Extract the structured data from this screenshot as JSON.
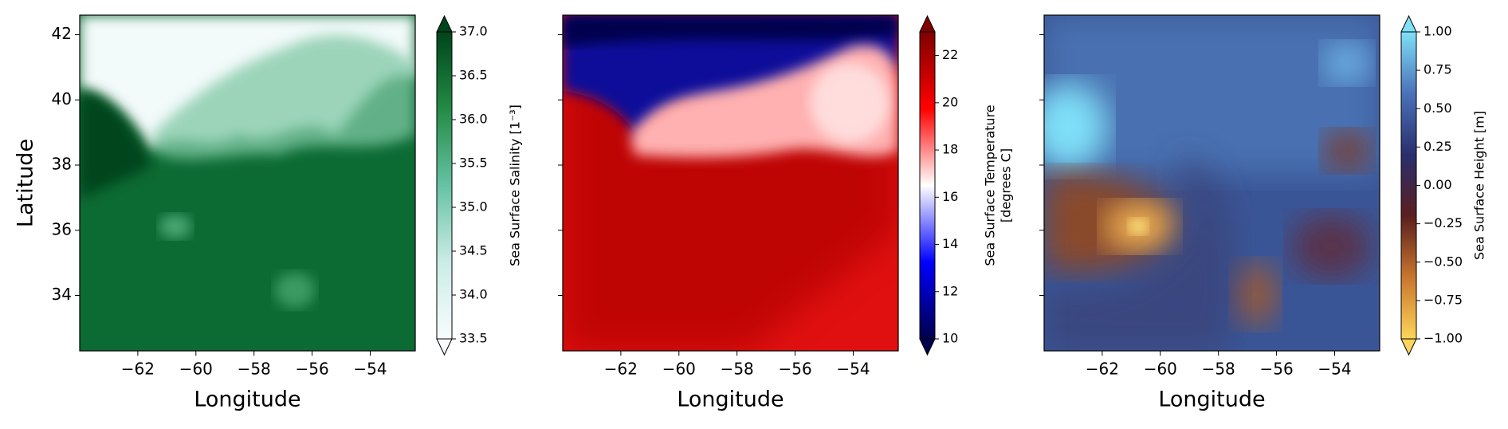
{
  "chart_data": [
    {
      "type": "heatmap",
      "xlabel": "Longitude",
      "ylabel": "Latitude",
      "xlim": [
        -64,
        -52.45
      ],
      "ylim": [
        32.3,
        42.6
      ],
      "xticks": [
        {
          "value": -62,
          "label": "−62"
        },
        {
          "value": -60,
          "label": "−60"
        },
        {
          "value": -58,
          "label": "−58"
        },
        {
          "value": -56,
          "label": "−56"
        },
        {
          "value": -54,
          "label": "−54"
        }
      ],
      "yticks": [
        34,
        36,
        38,
        40,
        42
      ],
      "colorbar": {
        "label": [
          "Sea Surface Salinity [1⁻³]"
        ],
        "lim": [
          33.5,
          37.0
        ],
        "ticks": [
          33.5,
          {
            "value": 34,
            "label": "34.0"
          },
          34.5,
          {
            "value": 35,
            "label": "35.0"
          },
          35.5,
          {
            "value": 36,
            "label": "36.0"
          },
          36.5,
          {
            "value": 37,
            "label": "37.0"
          }
        ],
        "colors": [
          "#f7fcfd",
          "#ccece6",
          "#66c2a4",
          "#238b45",
          "#00441b"
        ]
      }
    },
    {
      "type": "heatmap",
      "xlabel": "Longitude",
      "xlim": [
        -64,
        -52.45
      ],
      "ylim": [
        32.3,
        42.6
      ],
      "xticks": [
        {
          "value": -62,
          "label": "−62"
        },
        {
          "value": -60,
          "label": "−60"
        },
        {
          "value": -58,
          "label": "−58"
        },
        {
          "value": -56,
          "label": "−56"
        },
        {
          "value": -54,
          "label": "−54"
        }
      ],
      "colorbar": {
        "label": [
          "Sea Surface Temperature",
          "[degrees C]"
        ],
        "lim": [
          10,
          23
        ],
        "ticks": [
          10,
          12,
          14,
          16,
          18,
          20,
          22
        ],
        "colors": [
          "#00004c",
          "#0000ff",
          "#ffffff",
          "#ff0000",
          "#800000"
        ]
      }
    },
    {
      "type": "heatmap",
      "xlabel": "Longitude",
      "xlim": [
        -64,
        -52.45
      ],
      "ylim": [
        32.3,
        42.6
      ],
      "xticks": [
        {
          "value": -62,
          "label": "−62"
        },
        {
          "value": -60,
          "label": "−60"
        },
        {
          "value": -58,
          "label": "−58"
        },
        {
          "value": -56,
          "label": "−56"
        },
        {
          "value": -54,
          "label": "−54"
        }
      ],
      "colorbar": {
        "label": [
          "Sea Surface Height [m]"
        ],
        "lim": [
          -1.0,
          1.0
        ],
        "ticks": [
          {
            "value": -1,
            "label": "−1.00"
          },
          {
            "value": -0.75,
            "label": "−0.75"
          },
          {
            "value": -0.5,
            "label": "−0.50"
          },
          {
            "value": -0.25,
            "label": "−0.25"
          },
          {
            "value": 0,
            "label": "0.00"
          },
          0.25,
          {
            "value": 0.5,
            "label": "0.50"
          },
          0.75,
          {
            "value": 1,
            "label": "1.00"
          }
        ],
        "colors": [
          "#fdd55a",
          "#c9762e",
          "#5a1f1f",
          "#2a2e6e",
          "#4a72b8",
          "#7fe0f8"
        ]
      }
    }
  ]
}
